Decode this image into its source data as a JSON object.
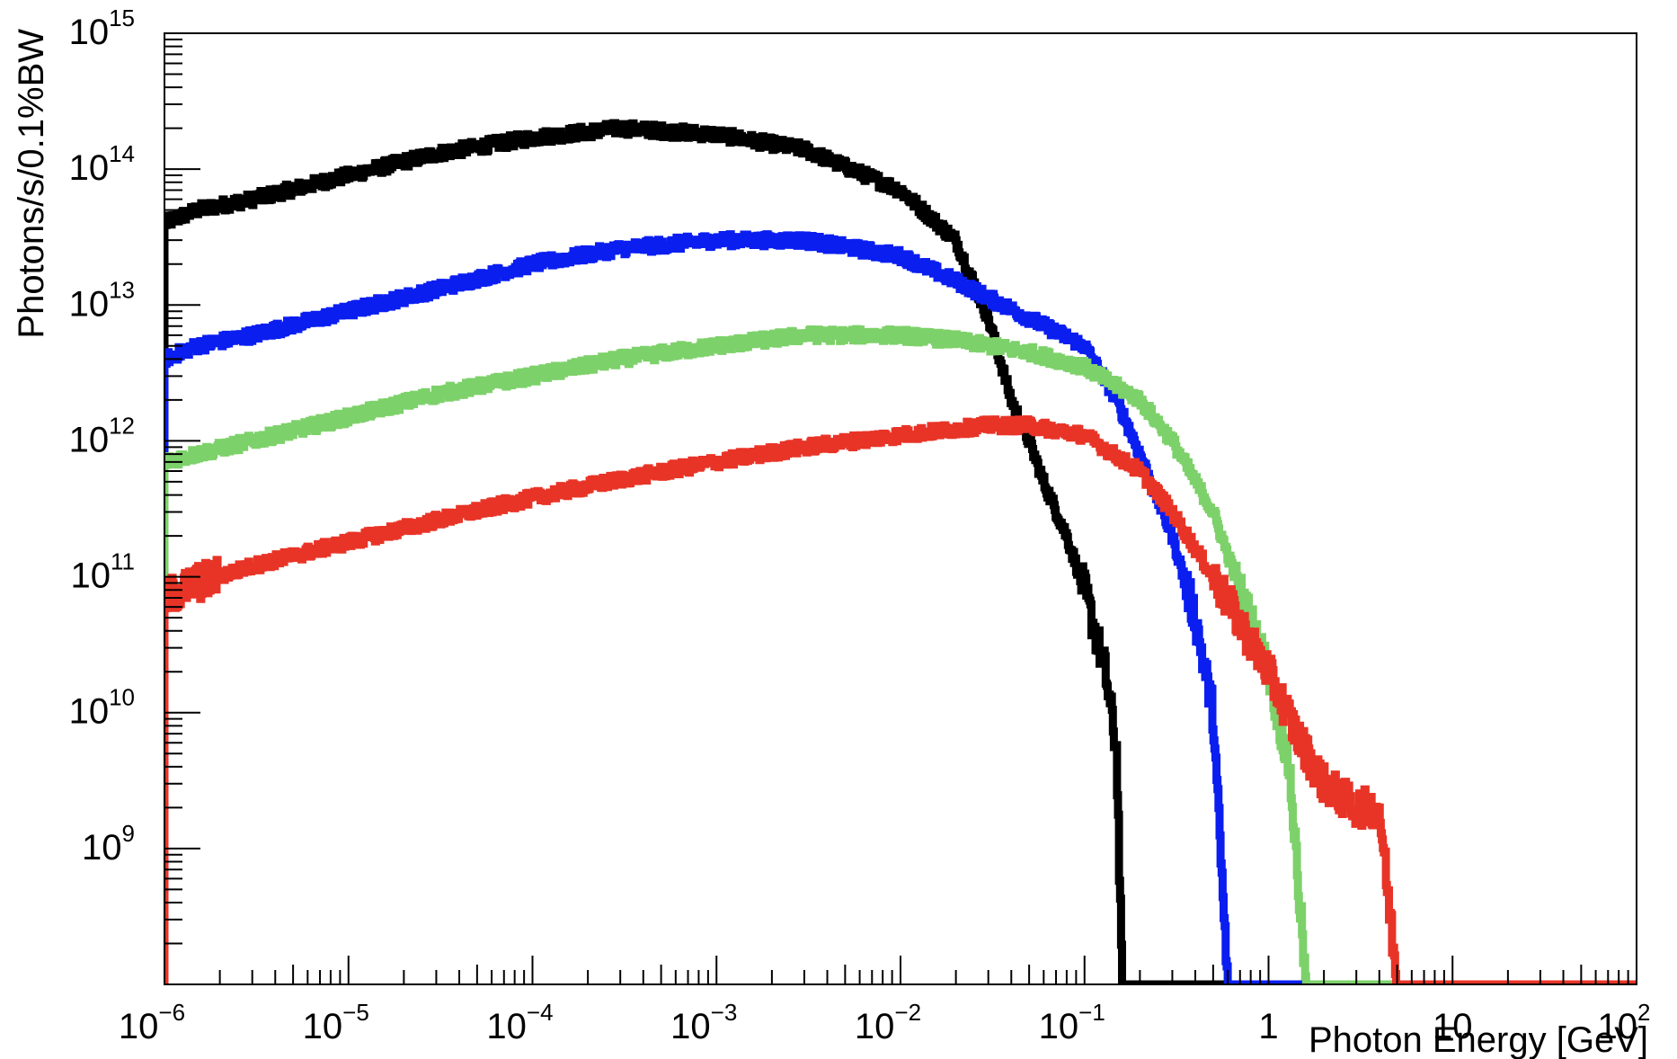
{
  "chart_data": {
    "type": "line",
    "title": "",
    "xlabel": "Photon Energy [GeV]",
    "ylabel": "Photons/s/0.1%BW",
    "x_scale": "log",
    "y_scale": "log",
    "xlim": [
      1e-06,
      100
    ],
    "ylim": [
      100000000.0,
      1000000000000000.0
    ],
    "grid": false,
    "legend": "none",
    "x_ticks": [
      {
        "base": "10",
        "exp": "−6",
        "value": 1e-06
      },
      {
        "base": "10",
        "exp": "−5",
        "value": 1e-05
      },
      {
        "base": "10",
        "exp": "−4",
        "value": 0.0001
      },
      {
        "base": "10",
        "exp": "−3",
        "value": 0.001
      },
      {
        "base": "10",
        "exp": "−2",
        "value": 0.01
      },
      {
        "base": "10",
        "exp": "−1",
        "value": 0.1
      },
      {
        "base": "1",
        "exp": "",
        "value": 1
      },
      {
        "base": "10",
        "exp": "",
        "value": 10
      },
      {
        "base": "10",
        "exp": "2",
        "value": 100
      }
    ],
    "y_ticks": [
      {
        "base": "10",
        "exp": "9",
        "value": 1000000000.0
      },
      {
        "base": "10",
        "exp": "10",
        "value": 10000000000.0
      },
      {
        "base": "10",
        "exp": "11",
        "value": 100000000000.0
      },
      {
        "base": "10",
        "exp": "12",
        "value": 1000000000000.0
      },
      {
        "base": "10",
        "exp": "13",
        "value": 10000000000000.0
      },
      {
        "base": "10",
        "exp": "14",
        "value": 100000000000000.0
      },
      {
        "base": "10",
        "exp": "15",
        "value": 1000000000000000.0
      }
    ],
    "series": [
      {
        "color": "#000000",
        "x": [
          1e-06,
          1.5e-06,
          3e-06,
          1e-05,
          3e-05,
          0.0001,
          0.0003,
          0.001,
          0.003,
          0.01,
          0.02,
          0.03,
          0.04,
          0.05,
          0.06,
          0.08,
          0.1,
          0.13,
          0.15,
          0.16
        ],
        "y": [
          40000000000000.0,
          50000000000000.0,
          60000000000000.0,
          90000000000000.0,
          130000000000000.0,
          170000000000000.0,
          200000000000000.0,
          180000000000000.0,
          140000000000000.0,
          70000000000000.0,
          30000000000000.0,
          8000000000000.0,
          2000000000000.0,
          1000000000000.0,
          500000000000.0,
          200000000000.0,
          80000000000.0,
          20000000000.0,
          5000000000.0,
          100000000.0
        ]
      },
      {
        "color": "#0a1ef0",
        "x": [
          1e-06,
          1.5e-06,
          3e-06,
          1e-05,
          3e-05,
          0.0001,
          0.0003,
          0.001,
          0.003,
          0.01,
          0.02,
          0.05,
          0.1,
          0.15,
          0.2,
          0.3,
          0.4,
          0.5,
          0.6
        ],
        "y": [
          4000000000000.0,
          5000000000000.0,
          6000000000000.0,
          9000000000000.0,
          13000000000000.0,
          20000000000000.0,
          26000000000000.0,
          30000000000000.0,
          30000000000000.0,
          23000000000000.0,
          15000000000000.0,
          8000000000000.0,
          5000000000000.0,
          2000000000000.0,
          800000000000.0,
          200000000000.0,
          50000000000.0,
          10000000000.0,
          100000000.0
        ]
      },
      {
        "color": "#7dd16a",
        "x": [
          1e-06,
          1.5e-06,
          3e-06,
          1e-05,
          3e-05,
          0.0001,
          0.0003,
          0.001,
          0.003,
          0.01,
          0.02,
          0.05,
          0.1,
          0.2,
          0.3,
          0.5,
          0.7,
          1,
          1.3,
          1.6
        ],
        "y": [
          700000000000.0,
          800000000000.0,
          1000000000000.0,
          1500000000000.0,
          2200000000000.0,
          3000000000000.0,
          4000000000000.0,
          5000000000000.0,
          6000000000000.0,
          6000000000000.0,
          5500000000000.0,
          4500000000000.0,
          3500000000000.0,
          2000000000000.0,
          1000000000000.0,
          300000000000.0,
          80000000000.0,
          20000000000.0,
          4000000000.0,
          100000000.0
        ]
      },
      {
        "color": "#e83427",
        "x": [
          1e-06,
          1.5e-06,
          3e-06,
          1e-05,
          3e-05,
          0.0001,
          0.0003,
          0.001,
          0.003,
          0.01,
          0.03,
          0.05,
          0.1,
          0.2,
          0.3,
          0.5,
          1,
          1.5,
          2,
          3,
          4,
          5
        ],
        "y": [
          70000000000.0,
          90000000000.0,
          120000000000.0,
          180000000000.0,
          260000000000.0,
          380000000000.0,
          520000000000.0,
          700000000000.0,
          900000000000.0,
          1100000000000.0,
          1300000000000.0,
          1300000000000.0,
          1100000000000.0,
          600000000000.0,
          300000000000.0,
          100000000000.0,
          20000000000.0,
          6000000000.0,
          3000000000.0,
          2000000000.0,
          2000000000.0,
          100000000.0
        ]
      }
    ]
  }
}
